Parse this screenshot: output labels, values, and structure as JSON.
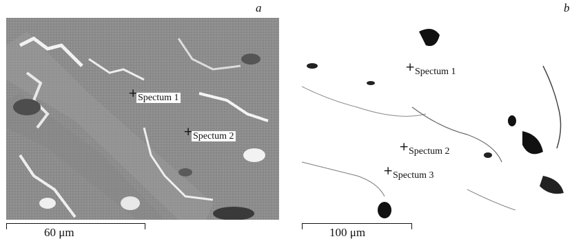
{
  "panel_a": {
    "letter": "a",
    "markers": [
      {
        "label": "Spectum 1"
      },
      {
        "label": "Spectum 2"
      }
    ],
    "scale_label": "60 μm"
  },
  "panel_b": {
    "letter": "b",
    "markers": [
      {
        "label": "Spectum 1"
      },
      {
        "label": "Spectum 2"
      },
      {
        "label": "Spectum 3"
      }
    ],
    "scale_label": "100 μm"
  }
}
